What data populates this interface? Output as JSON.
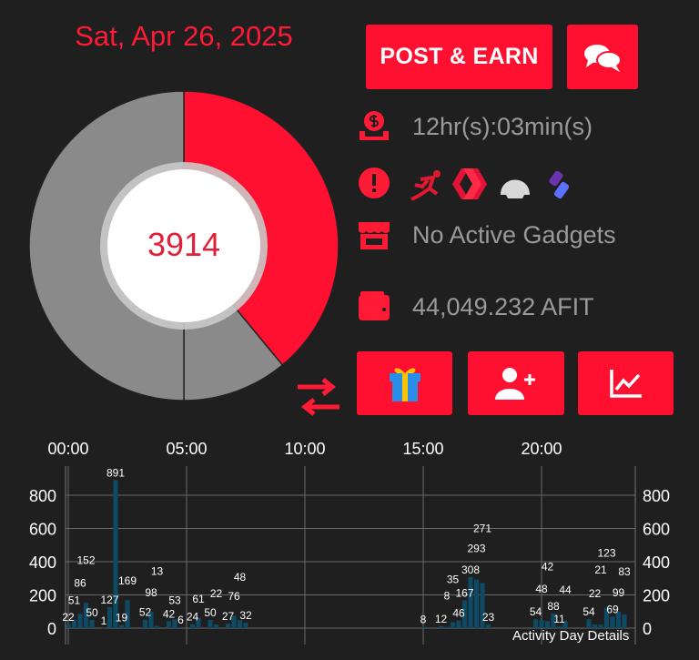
{
  "header": {
    "date": "Sat, Apr 26, 2025"
  },
  "buttons": {
    "post_earn": "POST & EARN",
    "chat_icon": "chat-bubbles-icon",
    "gift_icon": "gift-icon",
    "add_user_icon": "add-user-icon",
    "stats_icon": "line-chart-icon",
    "swap_icon": "swap-arrows-icon"
  },
  "donut": {
    "center_value": "3914",
    "segments": [
      {
        "color": "#ff1030",
        "percent": 39
      },
      {
        "color": "#8a8a8a",
        "percent": 11
      },
      {
        "color": "#8a8a8a",
        "percent": 50
      }
    ]
  },
  "info": {
    "timer": "12hr(s):03min(s)",
    "gadgets": "No Active Gadgets",
    "balance": "44,049.232 AFIT"
  },
  "colors": {
    "accent": "#ff1030",
    "background": "#1f1f1f",
    "bar": "#0e4a63"
  },
  "chart_data": {
    "type": "bar",
    "legend": "Activity Day Details",
    "x_ticks": [
      "00:00",
      "05:00",
      "10:00",
      "15:00",
      "20:00"
    ],
    "xlim_hours": [
      0,
      24
    ],
    "ylim": [
      0,
      900
    ],
    "y_ticks": [
      "0",
      "200",
      "400",
      "600",
      "800"
    ],
    "grid": true,
    "points": [
      [
        "00:00",
        22
      ],
      [
        "00:15",
        51
      ],
      [
        "00:30",
        86
      ],
      [
        "00:45",
        152
      ],
      [
        "01:00",
        50
      ],
      [
        "01:30",
        1
      ],
      [
        "01:45",
        127
      ],
      [
        "02:00",
        891
      ],
      [
        "02:15",
        19
      ],
      [
        "02:30",
        169
      ],
      [
        "03:15",
        52
      ],
      [
        "03:30",
        98
      ],
      [
        "03:45",
        13
      ],
      [
        "04:15",
        42
      ],
      [
        "04:30",
        53
      ],
      [
        "04:45",
        6
      ],
      [
        "05:15",
        24
      ],
      [
        "05:30",
        61
      ],
      [
        "06:00",
        50
      ],
      [
        "06:15",
        22
      ],
      [
        "06:45",
        27
      ],
      [
        "07:00",
        76
      ],
      [
        "07:15",
        48
      ],
      [
        "07:30",
        32
      ],
      [
        "15:00",
        8
      ],
      [
        "15:45",
        12
      ],
      [
        "16:00",
        8
      ],
      [
        "16:15",
        35
      ],
      [
        "16:30",
        46
      ],
      [
        "16:45",
        167
      ],
      [
        "17:00",
        308
      ],
      [
        "17:15",
        293
      ],
      [
        "17:30",
        271
      ],
      [
        "17:45",
        23
      ],
      [
        "19:45",
        54
      ],
      [
        "20:00",
        48
      ],
      [
        "20:15",
        42
      ],
      [
        "20:30",
        88
      ],
      [
        "20:45",
        11
      ],
      [
        "21:00",
        44
      ],
      [
        "22:00",
        54
      ],
      [
        "22:15",
        22
      ],
      [
        "22:30",
        21
      ],
      [
        "22:45",
        123
      ],
      [
        "23:00",
        69
      ],
      [
        "23:15",
        99
      ],
      [
        "23:30",
        83
      ]
    ]
  }
}
